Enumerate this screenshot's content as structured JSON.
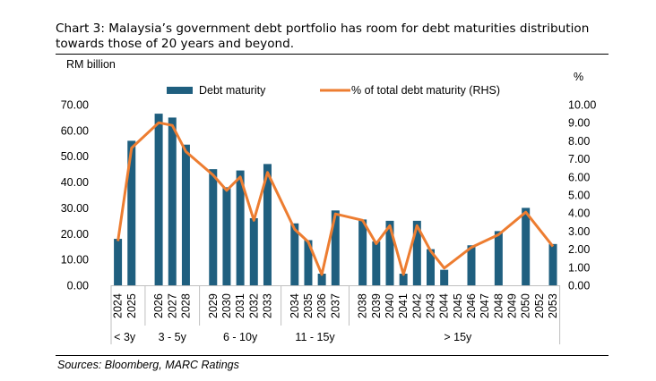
{
  "title": "Chart 3: Malaysia’s government debt portfolio has room for debt maturities distribution towards those of 20 years and beyond.",
  "source": "Sources: Bloomberg, MARC Ratings",
  "colors": {
    "bar": "#1f5f7f",
    "line": "#ed7d31"
  },
  "chart_data": {
    "type": "bar",
    "ylabel": "RM billion",
    "y2label": "%",
    "ylim": [
      0,
      70
    ],
    "y2lim": [
      0,
      10
    ],
    "yticks": [
      "0.00",
      "10.00",
      "20.00",
      "30.00",
      "40.00",
      "50.00",
      "60.00",
      "70.00"
    ],
    "y2ticks": [
      "0.00",
      "1.00",
      "2.00",
      "3.00",
      "4.00",
      "5.00",
      "6.00",
      "7.00",
      "8.00",
      "9.00",
      "10.00"
    ],
    "legend_position": "top",
    "categories": [
      "2024",
      "2025",
      "",
      "2026",
      "2027",
      "2028",
      "",
      "2029",
      "2030",
      "2031",
      "2032",
      "2033",
      "",
      "2034",
      "2035",
      "2036",
      "2037",
      "",
      "2038",
      "2039",
      "2040",
      "2041",
      "2042",
      "2043",
      "2044",
      "2045",
      "2046",
      "2047",
      "2048",
      "2049",
      "2050",
      "2052",
      "2053"
    ],
    "groups": [
      {
        "label": "< 3y",
        "start": 0,
        "end": 1
      },
      {
        "label": "3 - 5y",
        "start": 3,
        "end": 5
      },
      {
        "label": "6 - 10y",
        "start": 7,
        "end": 11
      },
      {
        "label": "11 - 15y",
        "start": 13,
        "end": 16
      },
      {
        "label": "> 15y",
        "start": 18,
        "end": 32
      }
    ],
    "series": [
      {
        "name": "Debt maturity",
        "kind": "bar",
        "axis": "left",
        "values": [
          18,
          56,
          null,
          66.5,
          65,
          54.5,
          null,
          45,
          38,
          44.5,
          26,
          47,
          null,
          24,
          17.5,
          4.5,
          29,
          null,
          25.5,
          17,
          25,
          4.5,
          25,
          14,
          6,
          null,
          15.5,
          null,
          21,
          null,
          30,
          null,
          16
        ]
      },
      {
        "name": "% of total debt maturity (RHS)",
        "kind": "line",
        "axis": "right",
        "values": [
          2.45,
          7.6,
          null,
          9.0,
          8.85,
          7.4,
          null,
          6.1,
          5.25,
          6.0,
          3.6,
          6.25,
          null,
          3.1,
          2.4,
          0.6,
          3.95,
          null,
          3.6,
          2.3,
          3.3,
          0.6,
          3.3,
          1.9,
          0.95,
          null,
          2.1,
          null,
          2.8,
          null,
          4.05,
          null,
          2.15
        ]
      }
    ]
  }
}
